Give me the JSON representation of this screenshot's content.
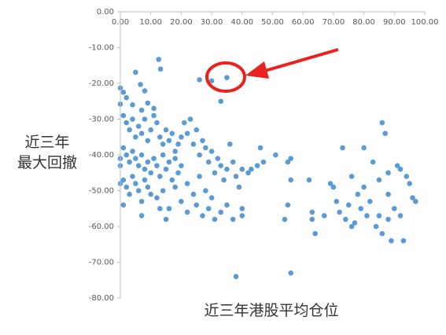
{
  "chart_data": {
    "type": "scatter",
    "x_label": "近三年港股平均仓位",
    "y_label": "近三年\n最大回撤",
    "xlim": [
      0,
      100
    ],
    "ylim": [
      -80,
      0
    ],
    "xticks": [
      {
        "value": 0,
        "label": "0.00"
      },
      {
        "value": 10,
        "label": "10.00"
      },
      {
        "value": 20,
        "label": "20.00"
      },
      {
        "value": 30,
        "label": "30.00"
      },
      {
        "value": 40,
        "label": "40.00"
      },
      {
        "value": 50,
        "label": "50.00"
      },
      {
        "value": 60,
        "label": "60.00"
      },
      {
        "value": 70,
        "label": "70.00"
      },
      {
        "value": 80,
        "label": "80.00"
      },
      {
        "value": 90,
        "label": "90.00"
      },
      {
        "value": 100,
        "label": "100.00"
      }
    ],
    "yticks": [
      {
        "value": 0,
        "label": "0.00"
      },
      {
        "value": -10,
        "label": "-10.00"
      },
      {
        "value": -20,
        "label": "-20.00"
      },
      {
        "value": -30,
        "label": "-30.00"
      },
      {
        "value": -40,
        "label": "-40.00"
      },
      {
        "value": -50,
        "label": "-50.00"
      },
      {
        "value": -60,
        "label": "-60.00"
      },
      {
        "value": -70,
        "label": "-70.00"
      },
      {
        "value": -80,
        "label": "-80.00"
      }
    ],
    "series": [
      {
        "color": "#5b9bd5",
        "x": [
          12.6,
          13.2,
          5,
          6.6,
          0,
          1,
          8,
          26,
          30,
          35,
          33,
          0,
          2,
          4,
          7,
          9,
          11,
          1,
          2,
          3,
          4,
          5,
          6,
          7,
          8,
          9,
          10,
          11,
          12,
          13,
          14,
          15,
          16,
          17,
          18,
          19,
          20,
          1,
          2,
          3,
          4,
          5,
          6,
          7,
          8,
          9,
          10,
          11,
          12,
          13,
          14,
          15,
          16,
          17,
          18,
          19,
          20,
          1,
          2,
          3,
          4,
          5,
          6,
          7,
          8,
          9,
          10,
          12,
          14,
          16,
          18,
          20,
          22,
          24,
          26,
          28,
          30,
          21,
          22,
          23,
          24,
          25,
          26,
          27,
          28,
          29,
          30,
          31,
          32,
          33,
          34,
          35,
          36,
          37,
          38,
          39,
          40,
          22,
          25,
          27,
          29,
          31,
          33,
          35,
          37,
          40,
          40,
          0,
          0,
          0,
          1,
          7,
          15,
          13,
          42,
          43,
          45,
          46,
          47,
          51,
          54,
          55,
          56,
          55,
          56,
          38,
          56,
          62,
          63,
          63,
          64,
          67,
          69,
          70,
          71,
          72,
          73,
          74,
          75,
          76,
          77,
          78,
          79,
          80,
          80,
          81,
          82,
          83,
          84,
          85,
          85,
          86,
          86,
          87,
          88,
          88,
          89,
          90,
          91,
          92,
          93,
          94,
          95,
          96,
          97,
          92,
          88,
          76
        ],
        "values": [
          -13.3,
          -16,
          -16.9,
          -20.3,
          -21.3,
          -22.5,
          -22.1,
          -19,
          -19.3,
          -18.4,
          -25,
          -25.8,
          -24,
          -26,
          -27.5,
          -25.5,
          -27,
          -29,
          -31,
          -33,
          -30,
          -35,
          -32,
          -34,
          -30,
          -36,
          -33,
          -29,
          -31,
          -35,
          -37,
          -33,
          -36,
          -34,
          -39,
          -37,
          -35,
          -38,
          -40,
          -42,
          -39,
          -41,
          -43,
          -40,
          -44,
          -42,
          -45,
          -41,
          -43,
          -46,
          -40,
          -44,
          -42,
          -47,
          -41,
          -45,
          -43,
          -47,
          -49,
          -51,
          -46,
          -48,
          -50,
          -53,
          -47,
          -49,
          -51,
          -52,
          -50,
          -55,
          -49,
          -53,
          -48,
          -51,
          -46,
          -50,
          -52,
          -31,
          -34,
          -30,
          -37,
          -33,
          -40,
          -36,
          -38,
          -42,
          -39,
          -45,
          -41,
          -43,
          -47,
          -44,
          -37,
          -42,
          -46,
          -49,
          -44,
          -56,
          -54,
          -57,
          -55,
          -58,
          -56,
          -54,
          -58,
          -55,
          -57,
          -41,
          -43,
          -48,
          -54,
          -57,
          -58,
          -55,
          -45,
          -44,
          -43,
          -38,
          -42,
          -40,
          -58,
          -42,
          -41,
          -54,
          -47,
          -74,
          -73,
          -47,
          -56,
          -58,
          -62,
          -57,
          -48,
          -49,
          -53,
          -56,
          -38,
          -58,
          -54,
          -46,
          -59,
          -51,
          -55,
          -49,
          -38,
          -57,
          -53,
          -42,
          -60,
          -47,
          -57,
          -62,
          -31,
          -34,
          -45,
          -51,
          -64,
          -55,
          -43,
          -44,
          -64,
          -46,
          -48,
          -52,
          -53,
          -57,
          -58,
          -60
        ]
      }
    ]
  }
}
